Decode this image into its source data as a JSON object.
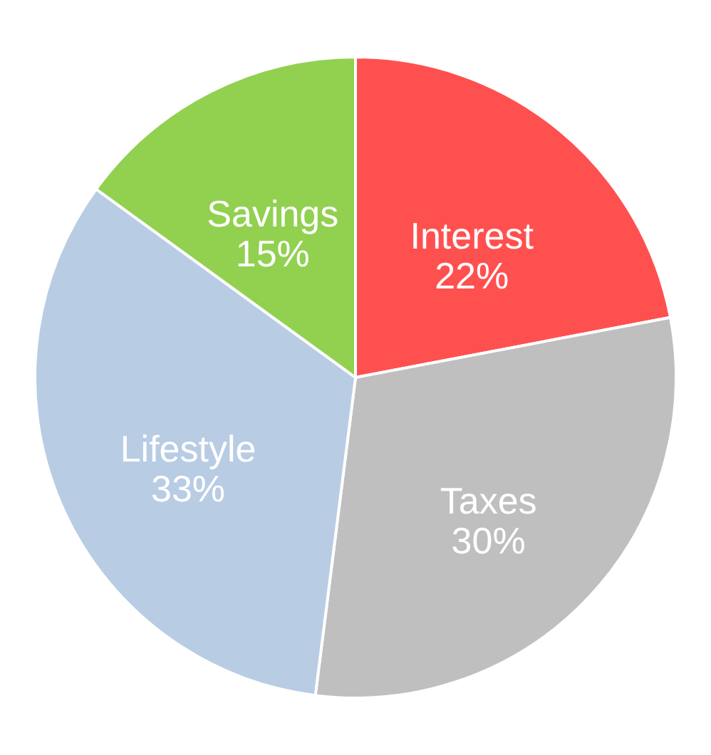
{
  "chart_data": {
    "type": "pie",
    "categories": [
      "Interest",
      "Taxes",
      "Lifestyle",
      "Savings"
    ],
    "values": [
      22,
      30,
      33,
      15
    ],
    "value_labels": [
      "22%",
      "30%",
      "33%",
      "15%"
    ],
    "colors": [
      "#ff5050",
      "#bfbfbf",
      "#b8cce4",
      "#92d050"
    ]
  }
}
